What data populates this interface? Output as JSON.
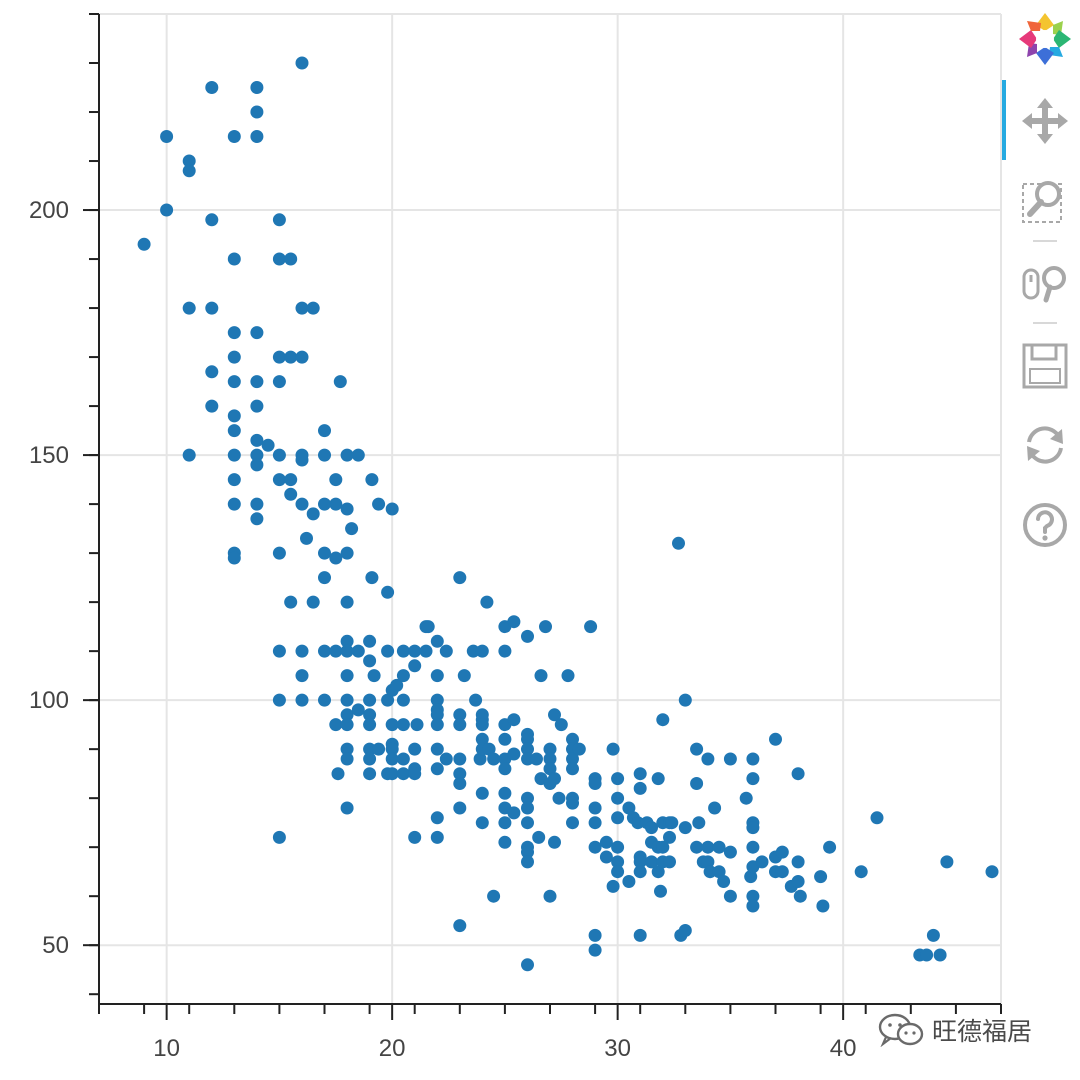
{
  "chart_data": {
    "type": "scatter",
    "title": "",
    "xlabel": "",
    "ylabel": "",
    "xlim": [
      7,
      47
    ],
    "ylim": [
      38,
      240
    ],
    "x_ticks": [
      10,
      20,
      30,
      40
    ],
    "x_tick_labels": [
      "10",
      "20",
      "30",
      "40"
    ],
    "y_ticks": [
      50,
      100,
      150,
      200
    ],
    "y_tick_labels": [
      "50",
      "100",
      "150",
      "200"
    ],
    "grid": true,
    "marker_color": "#1f77b4",
    "points": [
      [
        9,
        193
      ],
      [
        10,
        215
      ],
      [
        10,
        200
      ],
      [
        11,
        210
      ],
      [
        11,
        208
      ],
      [
        11,
        180
      ],
      [
        11,
        150
      ],
      [
        12,
        225
      ],
      [
        12,
        198
      ],
      [
        12,
        180
      ],
      [
        12,
        167
      ],
      [
        12,
        160
      ],
      [
        13,
        215
      ],
      [
        13,
        190
      ],
      [
        13,
        175
      ],
      [
        13,
        170
      ],
      [
        13,
        165
      ],
      [
        13,
        158
      ],
      [
        13,
        155
      ],
      [
        13,
        150
      ],
      [
        13,
        145
      ],
      [
        13,
        140
      ],
      [
        13,
        130
      ],
      [
        13,
        129
      ],
      [
        14,
        225
      ],
      [
        14,
        220
      ],
      [
        14,
        215
      ],
      [
        14,
        175
      ],
      [
        14,
        165
      ],
      [
        14,
        160
      ],
      [
        14,
        153
      ],
      [
        14,
        150
      ],
      [
        14,
        148
      ],
      [
        14,
        140
      ],
      [
        14,
        137
      ],
      [
        14.5,
        152
      ],
      [
        15,
        198
      ],
      [
        15,
        190
      ],
      [
        15,
        170
      ],
      [
        15,
        165
      ],
      [
        15,
        150
      ],
      [
        15,
        145
      ],
      [
        15,
        130
      ],
      [
        15,
        110
      ],
      [
        15,
        100
      ],
      [
        15,
        72
      ],
      [
        15.5,
        190
      ],
      [
        15.5,
        170
      ],
      [
        15.5,
        145
      ],
      [
        15.5,
        142
      ],
      [
        15.5,
        120
      ],
      [
        16,
        230
      ],
      [
        16,
        180
      ],
      [
        16,
        170
      ],
      [
        16,
        150
      ],
      [
        16,
        149
      ],
      [
        16,
        140
      ],
      [
        16,
        110
      ],
      [
        16,
        105
      ],
      [
        16,
        100
      ],
      [
        16.2,
        133
      ],
      [
        16.5,
        180
      ],
      [
        16.5,
        138
      ],
      [
        16.5,
        120
      ],
      [
        17,
        155
      ],
      [
        17,
        150
      ],
      [
        17,
        140
      ],
      [
        17,
        130
      ],
      [
        17,
        125
      ],
      [
        17,
        110
      ],
      [
        17,
        100
      ],
      [
        17.5,
        145
      ],
      [
        17.5,
        140
      ],
      [
        17.5,
        129
      ],
      [
        17.5,
        110
      ],
      [
        17.5,
        95
      ],
      [
        17.6,
        85
      ],
      [
        17.7,
        165
      ],
      [
        18,
        150
      ],
      [
        18,
        139
      ],
      [
        18,
        130
      ],
      [
        18,
        120
      ],
      [
        18,
        112
      ],
      [
        18,
        110
      ],
      [
        18,
        105
      ],
      [
        18,
        100
      ],
      [
        18,
        97
      ],
      [
        18,
        95
      ],
      [
        18,
        90
      ],
      [
        18,
        88
      ],
      [
        18,
        78
      ],
      [
        18.2,
        135
      ],
      [
        18.5,
        150
      ],
      [
        18.5,
        110
      ],
      [
        18.5,
        98
      ],
      [
        19,
        112
      ],
      [
        19,
        108
      ],
      [
        19,
        100
      ],
      [
        19,
        97
      ],
      [
        19,
        95
      ],
      [
        19,
        90
      ],
      [
        19,
        88
      ],
      [
        19,
        85
      ],
      [
        19.1,
        145
      ],
      [
        19.1,
        125
      ],
      [
        19.2,
        105
      ],
      [
        19.4,
        140
      ],
      [
        19.4,
        90
      ],
      [
        19.8,
        122
      ],
      [
        19.8,
        110
      ],
      [
        19.8,
        100
      ],
      [
        19.8,
        85
      ],
      [
        20,
        139
      ],
      [
        20,
        102
      ],
      [
        20,
        95
      ],
      [
        20,
        91
      ],
      [
        20,
        90
      ],
      [
        20,
        88
      ],
      [
        20,
        85
      ],
      [
        20.2,
        103
      ],
      [
        20.5,
        110
      ],
      [
        20.5,
        105
      ],
      [
        20.5,
        100
      ],
      [
        20.5,
        95
      ],
      [
        20.5,
        88
      ],
      [
        20.5,
        85
      ],
      [
        21,
        110
      ],
      [
        21,
        107
      ],
      [
        21,
        90
      ],
      [
        21,
        86
      ],
      [
        21,
        85
      ],
      [
        21,
        72
      ],
      [
        21.1,
        95
      ],
      [
        21.5,
        115
      ],
      [
        21.5,
        110
      ],
      [
        21.6,
        115
      ],
      [
        22,
        112
      ],
      [
        22,
        105
      ],
      [
        22,
        100
      ],
      [
        22,
        98
      ],
      [
        22,
        97
      ],
      [
        22,
        95
      ],
      [
        22,
        90
      ],
      [
        22,
        86
      ],
      [
        22,
        76
      ],
      [
        22,
        72
      ],
      [
        22.4,
        110
      ],
      [
        22.4,
        88
      ],
      [
        23,
        125
      ],
      [
        23,
        97
      ],
      [
        23,
        95
      ],
      [
        23,
        88
      ],
      [
        23,
        85
      ],
      [
        23,
        83
      ],
      [
        23,
        78
      ],
      [
        23,
        54
      ],
      [
        23.2,
        105
      ],
      [
        23.6,
        110
      ],
      [
        23.7,
        100
      ],
      [
        23.9,
        88
      ],
      [
        24,
        110
      ],
      [
        24,
        97
      ],
      [
        24,
        96
      ],
      [
        24,
        95
      ],
      [
        24,
        92
      ],
      [
        24,
        90
      ],
      [
        24,
        81
      ],
      [
        24,
        75
      ],
      [
        24.2,
        120
      ],
      [
        24.3,
        90
      ],
      [
        24.5,
        60
      ],
      [
        24.5,
        88
      ],
      [
        25,
        115
      ],
      [
        25,
        110
      ],
      [
        25,
        95
      ],
      [
        25,
        92
      ],
      [
        25,
        88
      ],
      [
        25,
        86
      ],
      [
        25,
        81
      ],
      [
        25,
        78
      ],
      [
        25,
        75
      ],
      [
        25,
        71
      ],
      [
        25.4,
        116
      ],
      [
        25.4,
        89
      ],
      [
        25.4,
        77
      ],
      [
        25.4,
        96
      ],
      [
        26,
        113
      ],
      [
        26,
        93
      ],
      [
        26,
        92
      ],
      [
        26,
        90
      ],
      [
        26,
        88
      ],
      [
        26,
        80
      ],
      [
        26,
        78
      ],
      [
        26,
        75
      ],
      [
        26,
        70
      ],
      [
        26,
        69
      ],
      [
        26,
        67
      ],
      [
        26,
        46
      ],
      [
        26.4,
        88
      ],
      [
        26.5,
        72
      ],
      [
        26.6,
        84
      ],
      [
        26.6,
        105
      ],
      [
        26.8,
        115
      ],
      [
        27,
        90
      ],
      [
        27,
        88
      ],
      [
        27,
        86
      ],
      [
        27,
        83
      ],
      [
        27,
        60
      ],
      [
        27.2,
        97
      ],
      [
        27.2,
        84
      ],
      [
        27.2,
        71
      ],
      [
        27.4,
        80
      ],
      [
        27.5,
        95
      ],
      [
        27.8,
        105
      ],
      [
        28,
        92
      ],
      [
        28,
        90
      ],
      [
        28,
        88
      ],
      [
        28,
        86
      ],
      [
        28,
        80
      ],
      [
        28,
        79
      ],
      [
        28,
        75
      ],
      [
        28.3,
        90
      ],
      [
        28.8,
        115
      ],
      [
        29,
        84
      ],
      [
        29,
        83
      ],
      [
        29,
        78
      ],
      [
        29,
        75
      ],
      [
        29,
        70
      ],
      [
        29,
        52
      ],
      [
        29,
        49
      ],
      [
        29.5,
        71
      ],
      [
        29.5,
        68
      ],
      [
        29.8,
        90
      ],
      [
        29.8,
        62
      ],
      [
        30,
        84
      ],
      [
        30,
        80
      ],
      [
        30,
        76
      ],
      [
        30,
        70
      ],
      [
        30,
        67
      ],
      [
        30,
        65
      ],
      [
        30.5,
        78
      ],
      [
        30.5,
        63
      ],
      [
        30.7,
        76
      ],
      [
        30.9,
        75
      ],
      [
        31,
        85
      ],
      [
        31,
        82
      ],
      [
        31,
        68
      ],
      [
        31,
        67
      ],
      [
        31,
        65
      ],
      [
        31,
        52
      ],
      [
        31.3,
        75
      ],
      [
        31.5,
        74
      ],
      [
        31.5,
        71
      ],
      [
        31.5,
        67
      ],
      [
        31.8,
        84
      ],
      [
        31.8,
        70
      ],
      [
        31.8,
        65
      ],
      [
        31.9,
        61
      ],
      [
        32,
        96
      ],
      [
        32,
        75
      ],
      [
        32,
        67
      ],
      [
        32,
        70
      ],
      [
        32.3,
        75
      ],
      [
        32.3,
        72
      ],
      [
        32.3,
        67
      ],
      [
        32.4,
        75
      ],
      [
        32.7,
        132
      ],
      [
        32.8,
        52
      ],
      [
        33,
        100
      ],
      [
        33,
        74
      ],
      [
        33,
        53
      ],
      [
        33.5,
        90
      ],
      [
        33.5,
        83
      ],
      [
        33.5,
        70
      ],
      [
        33.6,
        75
      ],
      [
        33.8,
        67
      ],
      [
        34,
        88
      ],
      [
        34,
        70
      ],
      [
        34,
        67
      ],
      [
        34.1,
        65
      ],
      [
        34.3,
        78
      ],
      [
        34.5,
        70
      ],
      [
        34.5,
        65
      ],
      [
        34.7,
        63
      ],
      [
        35,
        88
      ],
      [
        35,
        69
      ],
      [
        35,
        60
      ],
      [
        35.7,
        80
      ],
      [
        35.9,
        64
      ],
      [
        36,
        88
      ],
      [
        36,
        84
      ],
      [
        36,
        75
      ],
      [
        36,
        74
      ],
      [
        36,
        70
      ],
      [
        36,
        66
      ],
      [
        36,
        60
      ],
      [
        36,
        58
      ],
      [
        36.4,
        67
      ],
      [
        37,
        92
      ],
      [
        37,
        68
      ],
      [
        37,
        65
      ],
      [
        37.3,
        65
      ],
      [
        37.3,
        69
      ],
      [
        37.7,
        62
      ],
      [
        38,
        85
      ],
      [
        38,
        67
      ],
      [
        38,
        63
      ],
      [
        38.1,
        60
      ],
      [
        39,
        64
      ],
      [
        39.1,
        58
      ],
      [
        39.4,
        70
      ],
      [
        40.8,
        65
      ],
      [
        41.5,
        76
      ],
      [
        43.4,
        48
      ],
      [
        43.7,
        48
      ],
      [
        44,
        52
      ],
      [
        44.3,
        48
      ],
      [
        44.6,
        67
      ],
      [
        46.6,
        65
      ]
    ]
  },
  "toolbar": {
    "logo_icon": "bokeh-logo",
    "tools": [
      {
        "name": "pan-icon",
        "active": true
      },
      {
        "name": "box-zoom-icon",
        "active": false
      },
      {
        "name": "wheel-zoom-icon",
        "active": false
      },
      {
        "name": "save-icon",
        "active": false
      },
      {
        "name": "reset-icon",
        "active": false
      },
      {
        "name": "help-icon",
        "active": false
      }
    ],
    "active_color": "#26aae1",
    "icon_color": "#a8a8a8"
  },
  "watermark": {
    "text": "旺德福居"
  }
}
